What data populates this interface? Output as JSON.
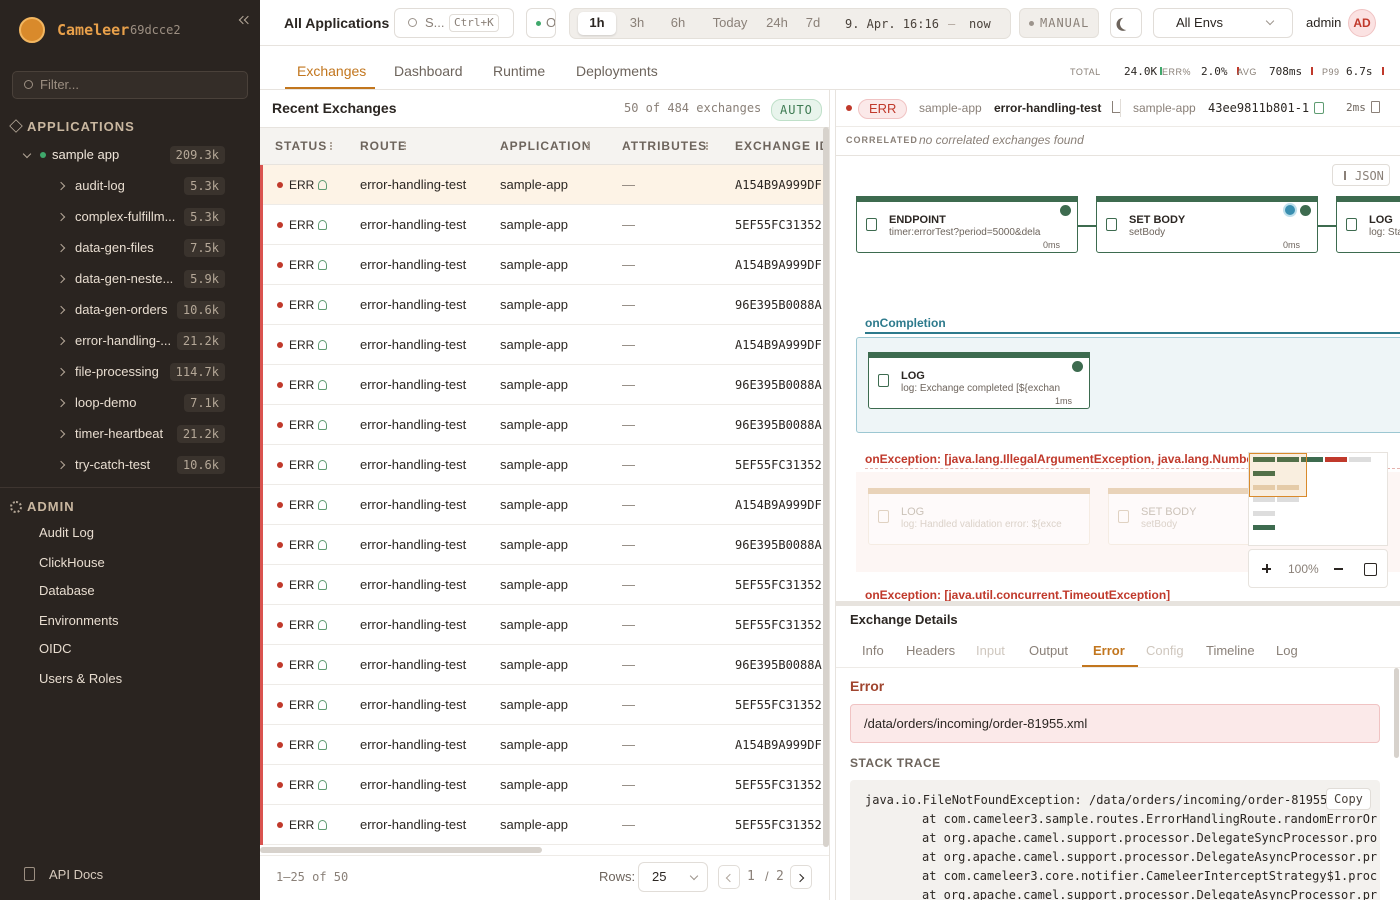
{
  "sidebar": {
    "brand": "Cameleer",
    "version": "69dcce2",
    "filter_placeholder": "Filter...",
    "applications_heading": "APPLICATIONS",
    "app": {
      "name": "sample app",
      "count": "209.3k"
    },
    "routes": [
      {
        "name": "audit-log",
        "count": "5.3k"
      },
      {
        "name": "complex-fulfillm...",
        "count": "5.3k"
      },
      {
        "name": "data-gen-files",
        "count": "7.5k"
      },
      {
        "name": "data-gen-neste...",
        "count": "5.9k"
      },
      {
        "name": "data-gen-orders",
        "count": "10.6k"
      },
      {
        "name": "error-handling-...",
        "count": "21.2k"
      },
      {
        "name": "file-processing",
        "count": "114.7k"
      },
      {
        "name": "loop-demo",
        "count": "7.1k"
      },
      {
        "name": "timer-heartbeat",
        "count": "21.2k"
      },
      {
        "name": "try-catch-test",
        "count": "10.6k"
      }
    ],
    "admin_heading": "ADMIN",
    "admin_items": [
      "Audit Log",
      "ClickHouse",
      "Database",
      "Environments",
      "OIDC",
      "Users & Roles"
    ],
    "api_docs": "API Docs"
  },
  "topbar": {
    "title": "All Applications",
    "search_placeholder": "S...",
    "shortcut": "Ctrl+K",
    "status": "O",
    "ranges": [
      "1h",
      "3h",
      "6h",
      "Today",
      "24h",
      "7d"
    ],
    "active_range": 0,
    "range_from": "9. Apr. 16:16",
    "range_sep": "–",
    "range_to": "now",
    "mode": "MANUAL",
    "env": "All Envs",
    "user": "admin",
    "avatar": "AD"
  },
  "tabs": {
    "items": [
      "Exchanges",
      "Dashboard",
      "Runtime",
      "Deployments"
    ],
    "active": 0
  },
  "stats": [
    {
      "label": "TOTAL",
      "value": "24.0K"
    },
    {
      "label": "ERR%",
      "value": "2.0%"
    },
    {
      "label": "AVG",
      "value": "708ms"
    },
    {
      "label": "P99",
      "value": "6.7s"
    }
  ],
  "table": {
    "title": "Recent Exchanges",
    "count": "50 of 484 exchanges",
    "refresh": "AUTO",
    "columns": [
      "STATUS",
      "ROUTE",
      "APPLICATION",
      "ATTRIBUTES",
      "EXCHANGE ID"
    ],
    "rows": [
      [
        "ERR",
        "error-handling-test",
        "sample-app",
        "—",
        "A154B9A999DF"
      ],
      [
        "ERR",
        "error-handling-test",
        "sample-app",
        "—",
        "5EF55FC31352"
      ],
      [
        "ERR",
        "error-handling-test",
        "sample-app",
        "—",
        "A154B9A999DF"
      ],
      [
        "ERR",
        "error-handling-test",
        "sample-app",
        "—",
        "96E395B0088A"
      ],
      [
        "ERR",
        "error-handling-test",
        "sample-app",
        "—",
        "A154B9A999DF"
      ],
      [
        "ERR",
        "error-handling-test",
        "sample-app",
        "—",
        "96E395B0088A"
      ],
      [
        "ERR",
        "error-handling-test",
        "sample-app",
        "—",
        "96E395B0088A"
      ],
      [
        "ERR",
        "error-handling-test",
        "sample-app",
        "—",
        "5EF55FC31352"
      ],
      [
        "ERR",
        "error-handling-test",
        "sample-app",
        "—",
        "A154B9A999DF"
      ],
      [
        "ERR",
        "error-handling-test",
        "sample-app",
        "—",
        "96E395B0088A"
      ],
      [
        "ERR",
        "error-handling-test",
        "sample-app",
        "—",
        "5EF55FC31352"
      ],
      [
        "ERR",
        "error-handling-test",
        "sample-app",
        "—",
        "5EF55FC31352"
      ],
      [
        "ERR",
        "error-handling-test",
        "sample-app",
        "—",
        "96E395B0088A"
      ],
      [
        "ERR",
        "error-handling-test",
        "sample-app",
        "—",
        "5EF55FC31352"
      ],
      [
        "ERR",
        "error-handling-test",
        "sample-app",
        "—",
        "A154B9A999DF"
      ],
      [
        "ERR",
        "error-handling-test",
        "sample-app",
        "—",
        "5EF55FC31352"
      ],
      [
        "ERR",
        "error-handling-test",
        "sample-app",
        "—",
        "5EF55FC31352"
      ]
    ],
    "range": "1–25 of 50",
    "rows_label": "Rows:",
    "page_size": "25",
    "page": "1",
    "page_sep": "/",
    "pages": "2"
  },
  "detail": {
    "status": "ERR",
    "app": "sample-app",
    "route": "error-handling-test",
    "app2": "sample-app",
    "exchange_id": "43ee9811b801-1",
    "duration": "2ms",
    "correlated_label": "CORRELATED",
    "correlated_text": "no correlated exchanges found",
    "json_button": "JSON",
    "nodes": [
      {
        "type": "ENDPOINT",
        "detail": "timer:errorTest?period=5000&dela",
        "time": "0ms"
      },
      {
        "type": "SET BODY",
        "detail": "setBody",
        "time": "0ms"
      },
      {
        "type": "LOG",
        "detail": "log: Sta"
      }
    ],
    "completion": {
      "label": "onCompletion",
      "nodes": [
        {
          "type": "LOG",
          "detail": "log: Exchange completed [${exchan",
          "time": "1ms"
        }
      ]
    },
    "exceptions": [
      {
        "label": "onException: [java.lang.IllegalArgumentException, java.lang.NumberForm",
        "nodes": [
          {
            "type": "LOG",
            "detail": "log: Handled validation error: ${exce"
          },
          {
            "type": "SET BODY",
            "detail": "setBody"
          }
        ]
      },
      {
        "label": "onException: [java.util.concurrent.TimeoutException]"
      }
    ],
    "zoom": "100%",
    "details_title": "Exchange Details",
    "detail_tabs": [
      "Info",
      "Headers",
      "Input",
      "Output",
      "Error",
      "Config",
      "Timeline",
      "Log"
    ],
    "active_tab": 4,
    "disabled_tabs": [
      2,
      5
    ],
    "error_heading": "Error",
    "error_message": "/data/orders/incoming/order-81955.xml",
    "stack_heading": "STACK TRACE",
    "copy": "Copy",
    "stack": [
      "java.io.FileNotFoundException: /data/orders/incoming/order-81955",
      "at com.cameleer3.sample.routes.ErrorHandlingRoute.randomErrorOr",
      "at org.apache.camel.support.processor.DelegateSyncProcessor.pro",
      "at org.apache.camel.support.processor.DelegateAsyncProcessor.pr",
      "at com.cameleer3.core.notifier.CameleerInterceptStrategy$1.proc",
      "at org.apache.camel.support.processor.DelegateAsyncProcessor.pr"
    ]
  }
}
